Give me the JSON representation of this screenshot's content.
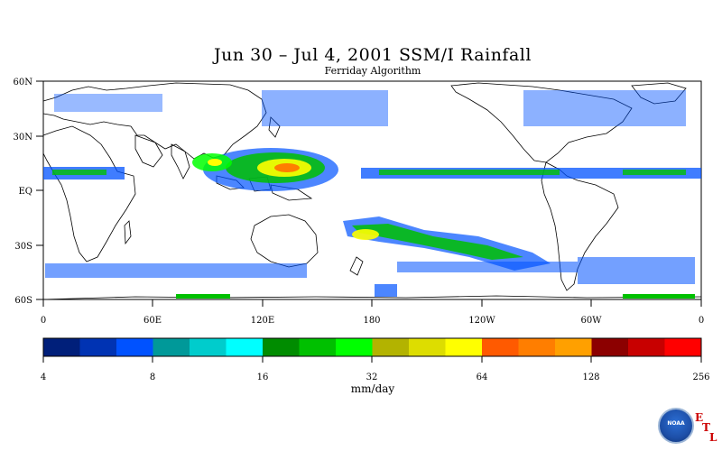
{
  "map": {
    "title": "Jun 30 – Jul 4, 2001 SSM/I Rainfall",
    "subtitle": "Ferriday Algorithm",
    "lat_labels": [
      "60N",
      "30N",
      "EQ",
      "30S",
      "60S"
    ],
    "lon_labels": [
      "0",
      "60E",
      "120E",
      "180",
      "120W",
      "60W",
      "0"
    ]
  },
  "colorbar": {
    "colors": [
      "#001f7a",
      "#0033b3",
      "#0052ff",
      "#009999",
      "#00cccc",
      "#00ffff",
      "#008c00",
      "#00c000",
      "#00ff00",
      "#b3b300",
      "#dddd00",
      "#ffff00",
      "#ff5a00",
      "#ff7e00",
      "#ffa000",
      "#8c0000",
      "#c80000",
      "#ff0000"
    ],
    "tick_labels": [
      "4",
      "8",
      "16",
      "32",
      "64",
      "128",
      "256"
    ],
    "units": "mm/day"
  },
  "logo": {
    "name": "NOAA",
    "etl": [
      "E",
      "T",
      "L"
    ]
  }
}
